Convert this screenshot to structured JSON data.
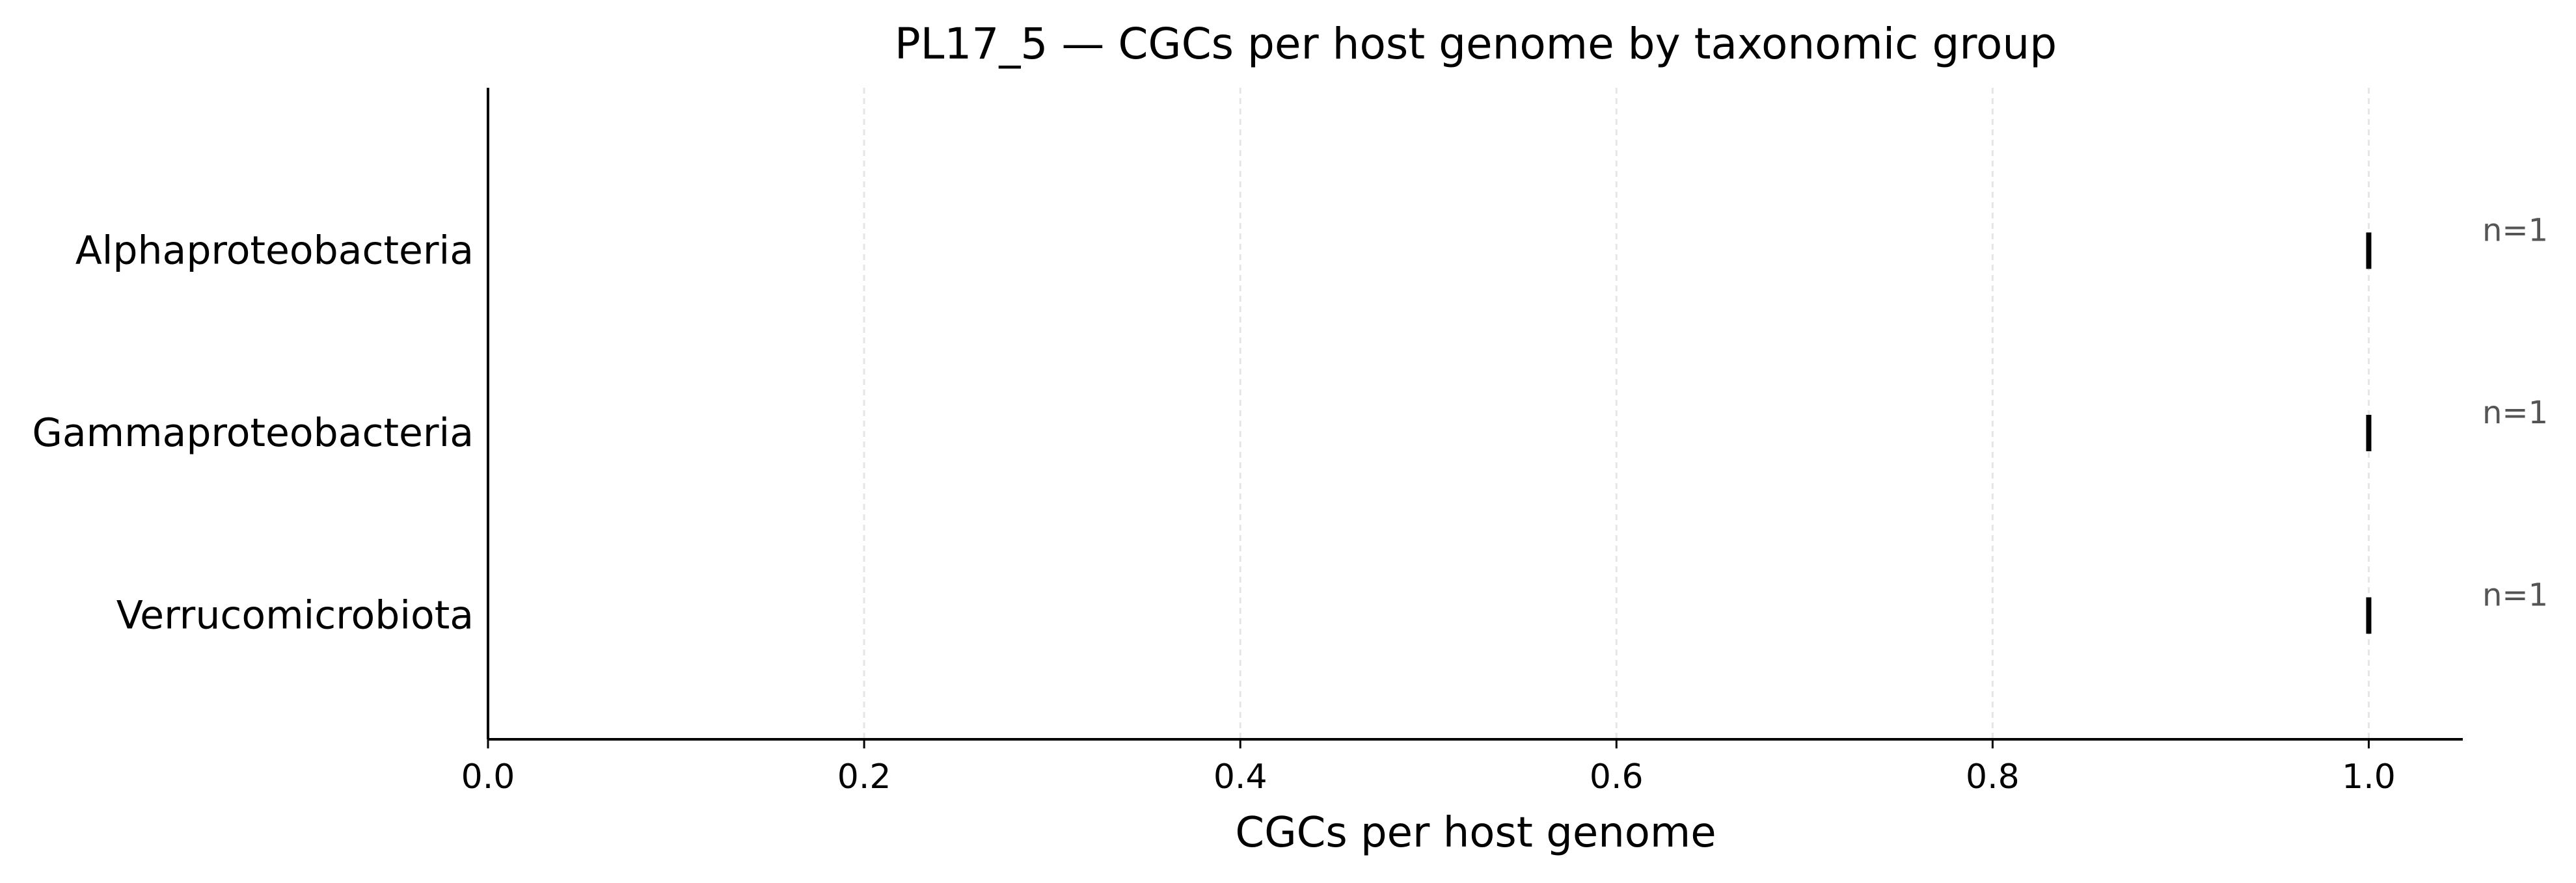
{
  "chart_data": {
    "type": "scatter",
    "title": "PL17_5 — CGCs per host genome by taxonomic group",
    "xlabel": "CGCs per host genome",
    "ylabel": "",
    "xlim": [
      0,
      1.05
    ],
    "x_ticks": [
      0.0,
      0.2,
      0.4,
      0.6,
      0.8,
      1.0
    ],
    "x_tick_labels": [
      "0.0",
      "0.2",
      "0.4",
      "0.6",
      "0.8",
      "1.0"
    ],
    "grid": "vertical dashed",
    "marker": "vertical tick",
    "categories": [
      "Alphaproteobacteria",
      "Gammaproteobacteria",
      "Verrucomicrobiota"
    ],
    "points": [
      {
        "category": "Alphaproteobacteria",
        "x": 1.0,
        "n_label": "n=1"
      },
      {
        "category": "Gammaproteobacteria",
        "x": 1.0,
        "n_label": "n=1"
      },
      {
        "category": "Verrucomicrobiota",
        "x": 1.0,
        "n_label": "n=1"
      }
    ],
    "colors": {
      "marker": "#000000",
      "grid": "#e6e6e6",
      "annotation": "#555555"
    }
  }
}
